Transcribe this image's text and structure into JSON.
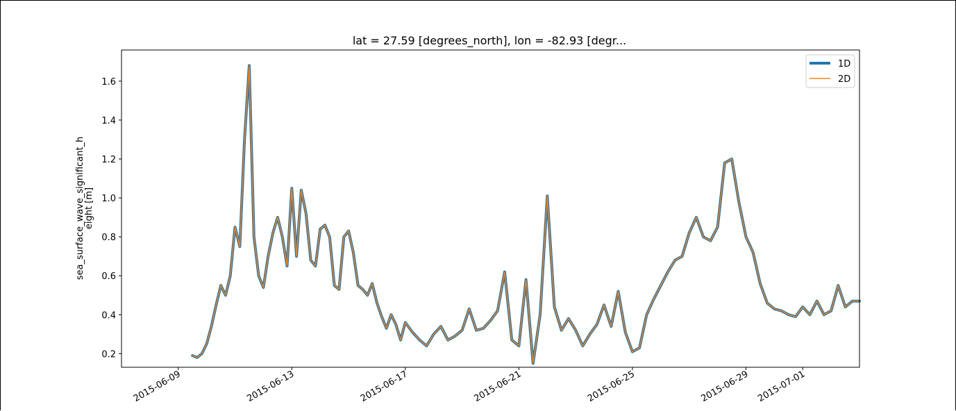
{
  "chart_data": {
    "type": "line",
    "title": "lat = 27.59 [degrees_north], lon = -82.93 [degr...",
    "xlabel": "",
    "ylabel_line1": "sea_surface_wave_significant_h",
    "ylabel_line2": "eight [m]",
    "xlim": [
      "2015-06-07T00:00",
      "2015-07-03T00:00"
    ],
    "ylim": [
      0.13,
      1.76
    ],
    "yticks": [
      0.2,
      0.4,
      0.6,
      0.8,
      1.0,
      1.2,
      1.4,
      1.6
    ],
    "ytick_labels": [
      "0.2",
      "0.4",
      "0.6",
      "0.8",
      "1.0",
      "1.2",
      "1.4",
      "1.6"
    ],
    "xticks": [
      "2015-06-09",
      "2015-06-13",
      "2015-06-17",
      "2015-06-21",
      "2015-06-25",
      "2015-06-29",
      "2015-07-01"
    ],
    "grid": false,
    "legend_position": "top-right",
    "series": [
      {
        "name": "1D",
        "color": "#1f77b4",
        "line_width": 4
      },
      {
        "name": "2D",
        "color": "#ff7f0e",
        "line_width": 1.5
      }
    ],
    "x": [
      "2015-06-09T12:00",
      "2015-06-09T16:00",
      "2015-06-09T20:00",
      "2015-06-10T00:00",
      "2015-06-10T04:00",
      "2015-06-10T08:00",
      "2015-06-10T12:00",
      "2015-06-10T16:00",
      "2015-06-10T20:00",
      "2015-06-11T00:00",
      "2015-06-11T04:00",
      "2015-06-11T08:00",
      "2015-06-11T12:00",
      "2015-06-11T16:00",
      "2015-06-11T20:00",
      "2015-06-12T00:00",
      "2015-06-12T04:00",
      "2015-06-12T08:00",
      "2015-06-12T12:00",
      "2015-06-12T16:00",
      "2015-06-12T20:00",
      "2015-06-13T00:00",
      "2015-06-13T04:00",
      "2015-06-13T08:00",
      "2015-06-13T12:00",
      "2015-06-13T16:00",
      "2015-06-13T20:00",
      "2015-06-14T00:00",
      "2015-06-14T04:00",
      "2015-06-14T08:00",
      "2015-06-14T12:00",
      "2015-06-14T16:00",
      "2015-06-14T20:00",
      "2015-06-15T00:00",
      "2015-06-15T04:00",
      "2015-06-15T08:00",
      "2015-06-15T12:00",
      "2015-06-15T16:00",
      "2015-06-15T20:00",
      "2015-06-16T00:00",
      "2015-06-16T04:00",
      "2015-06-16T08:00",
      "2015-06-16T12:00",
      "2015-06-16T16:00",
      "2015-06-16T20:00",
      "2015-06-17T00:00",
      "2015-06-17T06:00",
      "2015-06-17T12:00",
      "2015-06-17T18:00",
      "2015-06-18T00:00",
      "2015-06-18T06:00",
      "2015-06-18T12:00",
      "2015-06-18T18:00",
      "2015-06-19T00:00",
      "2015-06-19T06:00",
      "2015-06-19T12:00",
      "2015-06-19T18:00",
      "2015-06-20T00:00",
      "2015-06-20T06:00",
      "2015-06-20T12:00",
      "2015-06-20T18:00",
      "2015-06-21T00:00",
      "2015-06-21T06:00",
      "2015-06-21T12:00",
      "2015-06-21T18:00",
      "2015-06-22T00:00",
      "2015-06-22T06:00",
      "2015-06-22T12:00",
      "2015-06-22T18:00",
      "2015-06-23T00:00",
      "2015-06-23T06:00",
      "2015-06-23T12:00",
      "2015-06-23T18:00",
      "2015-06-24T00:00",
      "2015-06-24T06:00",
      "2015-06-24T12:00",
      "2015-06-24T18:00",
      "2015-06-25T00:00",
      "2015-06-25T06:00",
      "2015-06-25T12:00",
      "2015-06-25T18:00",
      "2015-06-26T00:00",
      "2015-06-26T06:00",
      "2015-06-26T12:00",
      "2015-06-26T18:00",
      "2015-06-27T00:00",
      "2015-06-27T06:00",
      "2015-06-27T12:00",
      "2015-06-27T18:00",
      "2015-06-28T00:00",
      "2015-06-28T06:00",
      "2015-06-28T12:00",
      "2015-06-28T18:00",
      "2015-06-29T00:00",
      "2015-06-29T06:00",
      "2015-06-29T12:00",
      "2015-06-29T18:00",
      "2015-06-30T00:00",
      "2015-06-30T06:00",
      "2015-06-30T12:00",
      "2015-06-30T18:00",
      "2015-07-01T00:00",
      "2015-07-01T06:00",
      "2015-07-01T12:00",
      "2015-07-01T18:00",
      "2015-07-02T00:00",
      "2015-07-02T06:00",
      "2015-07-02T12:00",
      "2015-07-02T18:00",
      "2015-07-03T00:00"
    ],
    "values": [
      0.19,
      0.18,
      0.2,
      0.25,
      0.34,
      0.45,
      0.55,
      0.5,
      0.6,
      0.85,
      0.75,
      1.3,
      1.68,
      0.8,
      0.6,
      0.54,
      0.7,
      0.82,
      0.9,
      0.8,
      0.65,
      1.05,
      0.7,
      1.04,
      0.92,
      0.68,
      0.65,
      0.84,
      0.86,
      0.8,
      0.55,
      0.53,
      0.8,
      0.83,
      0.72,
      0.55,
      0.53,
      0.5,
      0.56,
      0.46,
      0.39,
      0.33,
      0.4,
      0.35,
      0.27,
      0.36,
      0.31,
      0.27,
      0.24,
      0.3,
      0.34,
      0.27,
      0.29,
      0.32,
      0.43,
      0.32,
      0.33,
      0.37,
      0.42,
      0.62,
      0.27,
      0.24,
      0.58,
      0.15,
      0.4,
      1.01,
      0.44,
      0.32,
      0.38,
      0.32,
      0.24,
      0.3,
      0.35,
      0.45,
      0.34,
      0.52,
      0.31,
      0.21,
      0.23,
      0.4,
      0.48,
      0.55,
      0.62,
      0.68,
      0.7,
      0.82,
      0.9,
      0.8,
      0.78,
      0.85,
      1.18,
      1.2,
      0.98,
      0.8,
      0.72,
      0.56,
      0.46,
      0.43,
      0.42,
      0.4,
      0.39,
      0.44,
      0.4,
      0.47,
      0.4,
      0.42,
      0.55,
      0.44,
      0.47,
      0.47
    ]
  }
}
